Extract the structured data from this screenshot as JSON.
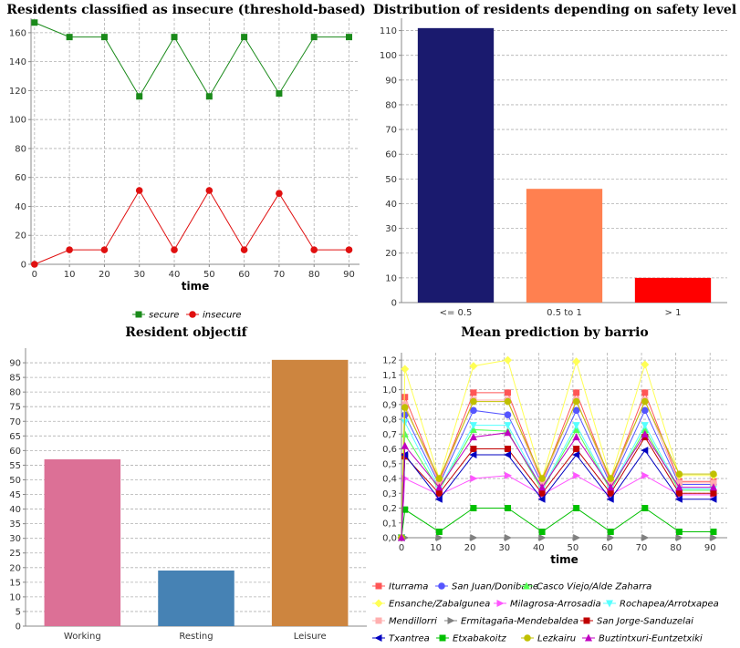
{
  "chart_data": [
    {
      "id": "insecure",
      "type": "line",
      "title": "Residents classified as insecure (threshold-based)",
      "xlabel": "time",
      "ylabel": "",
      "x": [
        0,
        10,
        20,
        30,
        40,
        50,
        60,
        70,
        80,
        90
      ],
      "xlim": [
        -1,
        93
      ],
      "ylim": [
        0,
        170
      ],
      "xticks": [
        0,
        10,
        20,
        30,
        40,
        50,
        60,
        70,
        80,
        90
      ],
      "yticks": [
        0,
        20,
        40,
        60,
        80,
        100,
        120,
        140,
        160
      ],
      "grid": true,
      "legend_position": "bottom",
      "series": [
        {
          "name": "secure",
          "color": "#1a8a1a",
          "marker": "square",
          "values": [
            167,
            157,
            157,
            116,
            157,
            116,
            157,
            118,
            157,
            157
          ]
        },
        {
          "name": "insecure",
          "color": "#e01010",
          "marker": "circle",
          "values": [
            0,
            10,
            10,
            51,
            10,
            51,
            10,
            49,
            10,
            10
          ]
        }
      ]
    },
    {
      "id": "safety",
      "type": "bar",
      "title": "Distribution of residents depending on safety level",
      "xlabel": "",
      "ylabel": "",
      "categories": [
        "<= 0.5",
        "0.5 to 1",
        "> 1"
      ],
      "values": [
        111,
        46,
        10
      ],
      "colors": [
        "#1a1a6e",
        "#ff8050",
        "#ff0000"
      ],
      "ylim": [
        0,
        115
      ],
      "yticks": [
        0,
        10,
        20,
        30,
        40,
        50,
        60,
        70,
        80,
        90,
        100,
        110
      ],
      "grid": true
    },
    {
      "id": "objectif",
      "type": "bar",
      "title": "Resident objectif",
      "xlabel": "",
      "ylabel": "",
      "categories": [
        "Working",
        "Resting",
        "Leisure"
      ],
      "values": [
        57,
        19,
        91
      ],
      "colors": [
        "#dc7096",
        "#4682b4",
        "#cd853f"
      ],
      "ylim": [
        0,
        95
      ],
      "yticks": [
        0,
        5,
        10,
        15,
        20,
        25,
        30,
        35,
        40,
        45,
        50,
        55,
        60,
        65,
        70,
        75,
        80,
        85,
        90
      ],
      "grid": true
    },
    {
      "id": "barrio",
      "type": "line",
      "title": "Mean prediction by barrio",
      "xlabel": "time",
      "ylabel": "",
      "x": [
        0,
        1,
        11,
        21,
        31,
        41,
        51,
        61,
        71,
        81,
        91
      ],
      "xlim": [
        0,
        95
      ],
      "ylim": [
        0,
        1.25
      ],
      "xticks": [
        0,
        10,
        20,
        30,
        40,
        50,
        60,
        70,
        80,
        90
      ],
      "xtick_labels": [
        "0",
        "10",
        "20",
        "30",
        "40",
        "50",
        "60",
        "70",
        "80",
        "90"
      ],
      "yticks": [
        0,
        0.1,
        0.2,
        0.3,
        0.4,
        0.5,
        0.6,
        0.7,
        0.8,
        0.9,
        1.0,
        1.1,
        1.2
      ],
      "ytick_labels": [
        "0,0",
        "0,1",
        "0,2",
        "0,3",
        "0,4",
        "0,5",
        "0,6",
        "0,7",
        "0,8",
        "0,9",
        "1,0",
        "1,1",
        "1,2"
      ],
      "grid": true,
      "legend_position": "bottom",
      "series": [
        {
          "name": "Iturrama",
          "color": "#ff5555",
          "marker": "square",
          "values": [
            0,
            0.95,
            0.38,
            0.98,
            0.98,
            0.38,
            0.98,
            0.38,
            0.98,
            0.38,
            0.38
          ]
        },
        {
          "name": "San Juan/Donibane",
          "color": "#5555ff",
          "marker": "circle",
          "values": [
            0,
            0.83,
            0.36,
            0.86,
            0.83,
            0.36,
            0.86,
            0.36,
            0.86,
            0.36,
            0.36
          ]
        },
        {
          "name": "Casco Viejo/Alde Zaharra",
          "color": "#55ff55",
          "marker": "triangle-up",
          "values": [
            0,
            0.7,
            0.32,
            0.73,
            0.72,
            0.32,
            0.73,
            0.32,
            0.73,
            0.32,
            0.32
          ]
        },
        {
          "name": "Ensanche/Zabalgunea",
          "color": "#ffff55",
          "marker": "diamond",
          "values": [
            0,
            1.14,
            0.4,
            1.16,
            1.2,
            0.4,
            1.19,
            0.4,
            1.17,
            0.42,
            0.42
          ]
        },
        {
          "name": "Milagrosa-Arrosadia",
          "color": "#ff55ff",
          "marker": "triangle-right",
          "values": [
            0,
            0.4,
            0.29,
            0.4,
            0.42,
            0.29,
            0.42,
            0.29,
            0.42,
            0.29,
            0.29
          ]
        },
        {
          "name": "Rochapea/Arrotxapea",
          "color": "#55ffff",
          "marker": "triangle-down",
          "values": [
            0,
            0.78,
            0.33,
            0.76,
            0.76,
            0.33,
            0.76,
            0.33,
            0.76,
            0.33,
            0.33
          ]
        },
        {
          "name": "Mendillorri",
          "color": "#ffafaf",
          "marker": "square",
          "values": [
            0,
            0.9,
            0.37,
            0.93,
            0.93,
            0.37,
            0.93,
            0.37,
            0.93,
            0.37,
            0.37
          ]
        },
        {
          "name": "Ermitagaña-Mendebaldea",
          "color": "#808080",
          "marker": "triangle-right",
          "values": [
            0,
            0.0,
            0.0,
            0.0,
            0.0,
            0.0,
            0.0,
            0.0,
            0.0,
            0.0,
            0.0
          ]
        },
        {
          "name": "San Jorge-Sanduzelai",
          "color": "#c00000",
          "marker": "square",
          "values": [
            0,
            0.55,
            0.3,
            0.6,
            0.6,
            0.3,
            0.6,
            0.3,
            0.68,
            0.3,
            0.3
          ]
        },
        {
          "name": "Txantrea",
          "color": "#0000c0",
          "marker": "triangle-left",
          "values": [
            0,
            0.56,
            0.26,
            0.56,
            0.56,
            0.26,
            0.56,
            0.26,
            0.59,
            0.26,
            0.26
          ]
        },
        {
          "name": "Etxabakoitz",
          "color": "#00c000",
          "marker": "square",
          "values": [
            0,
            0.19,
            0.04,
            0.2,
            0.2,
            0.04,
            0.2,
            0.04,
            0.2,
            0.04,
            0.04
          ]
        },
        {
          "name": "Lezkairu",
          "color": "#c0c000",
          "marker": "circle",
          "values": [
            0,
            0.88,
            0.4,
            0.92,
            0.92,
            0.4,
            0.92,
            0.4,
            0.92,
            0.43,
            0.43
          ]
        },
        {
          "name": "Buztintxuri-Euntzetxiki",
          "color": "#c000c0",
          "marker": "triangle-up",
          "values": [
            0,
            0.62,
            0.34,
            0.68,
            0.71,
            0.34,
            0.68,
            0.34,
            0.7,
            0.34,
            0.34
          ]
        }
      ]
    }
  ]
}
